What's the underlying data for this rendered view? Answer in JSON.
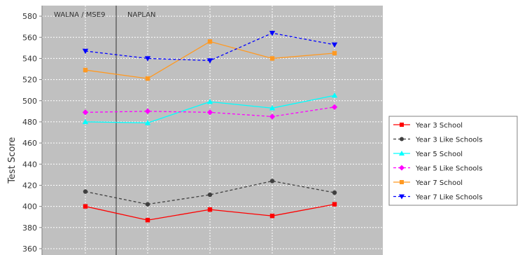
{
  "chart_data": {
    "type": "line",
    "ylabel": "Test Score",
    "ylim": [
      354,
      590
    ],
    "yticks": [
      360,
      380,
      400,
      420,
      440,
      460,
      480,
      500,
      520,
      540,
      560,
      580
    ],
    "region_labels": [
      "WALNA / MSE9",
      "NAPLAN"
    ],
    "legend_position": "right",
    "series": [
      {
        "name": "Year 3 School",
        "color": "#ff0000",
        "dashed": false,
        "marker": "square",
        "values": [
          400,
          387,
          397,
          391,
          402
        ]
      },
      {
        "name": "Year 3 Like Schools",
        "color": "#404040",
        "dashed": true,
        "marker": "circle",
        "values": [
          414,
          402,
          411,
          424,
          413
        ]
      },
      {
        "name": "Year 5 School",
        "color": "#00ffff",
        "dashed": false,
        "marker": "triangle-up",
        "values": [
          480,
          479,
          499,
          493,
          505
        ]
      },
      {
        "name": "Year 5 Like Schools",
        "color": "#ff00ff",
        "dashed": true,
        "marker": "diamond",
        "values": [
          489,
          490,
          489,
          485,
          494
        ]
      },
      {
        "name": "Year 7 School",
        "color": "#ff9922",
        "dashed": false,
        "marker": "square",
        "values": [
          529,
          521,
          556,
          540,
          545
        ]
      },
      {
        "name": "Year 7 Like Schools",
        "color": "#0000ff",
        "dashed": true,
        "marker": "triangle-down",
        "values": [
          547,
          540,
          538,
          564,
          553
        ]
      }
    ]
  }
}
